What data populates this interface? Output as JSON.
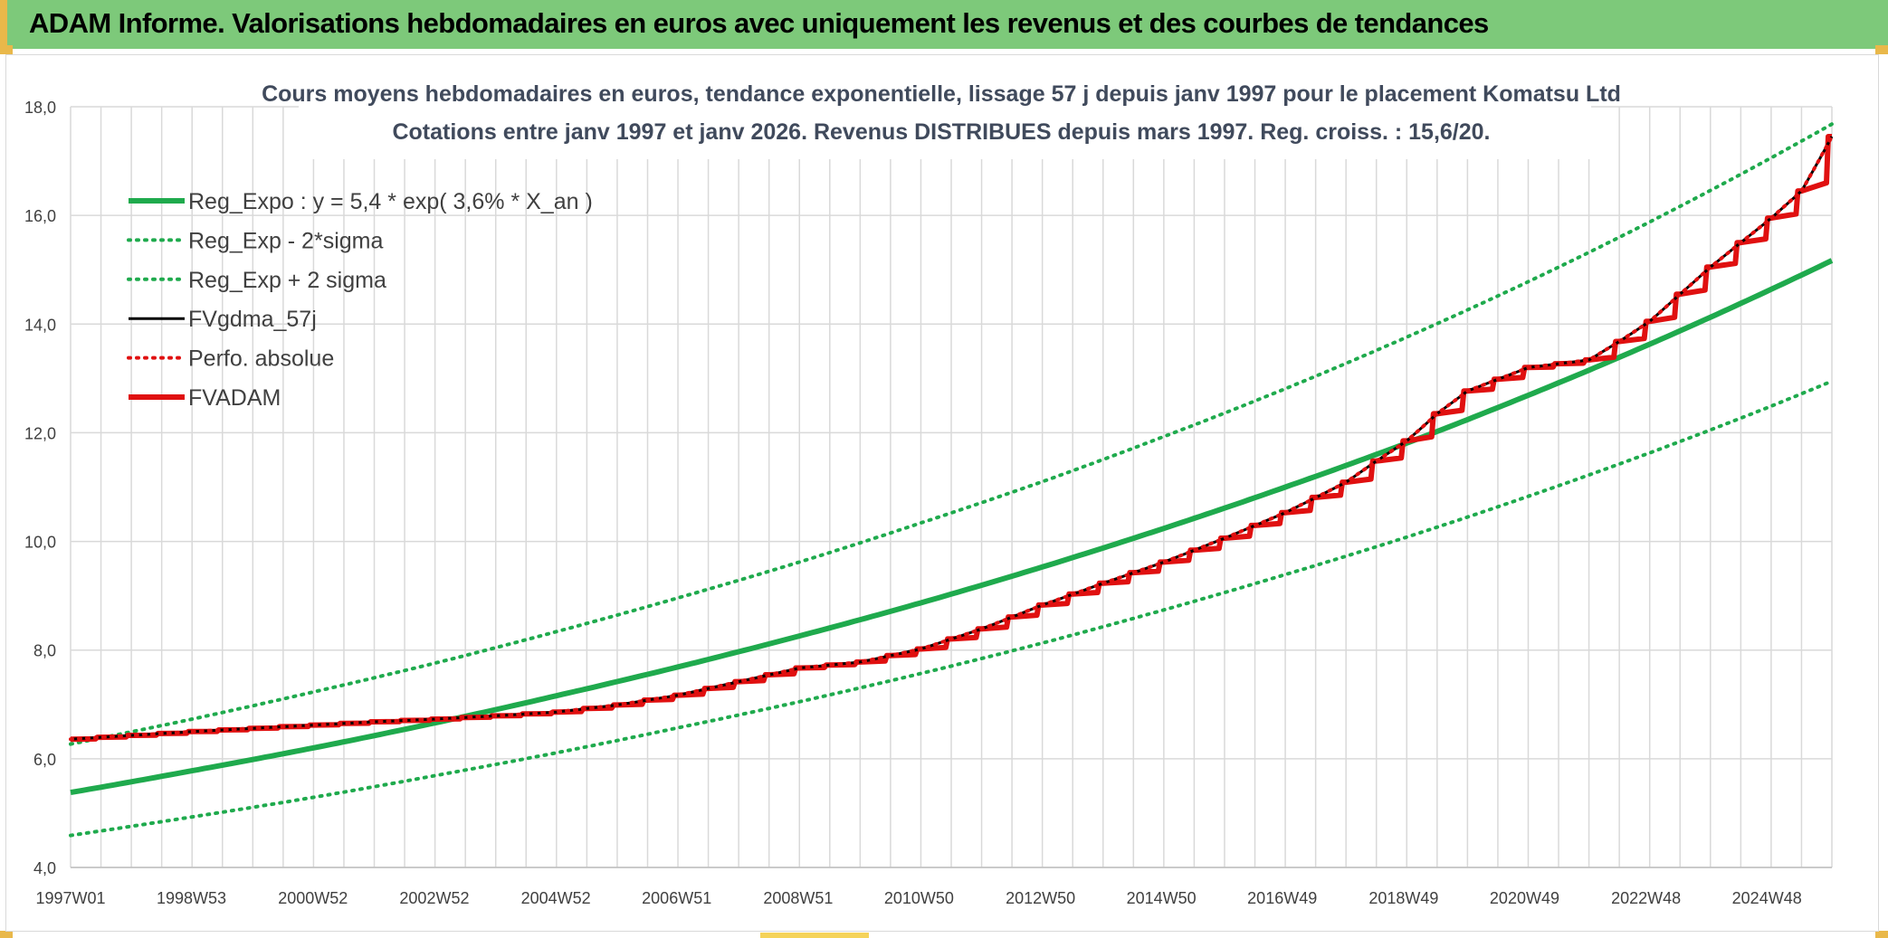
{
  "header": {
    "title": "ADAM Informe. Valorisations hebdomadaires en euros avec uniquement les revenus et des courbes de tendances"
  },
  "colors": {
    "green": "#1faa4d",
    "red": "#e01010",
    "black": "#000000",
    "grid": "#d9d9d9",
    "header_bg": "#7dc97a"
  },
  "chart_data": {
    "type": "line",
    "title": "Cours moyens hebdomadaires en euros, tendance exponentielle, lissage 57 j depuis janv 1997 pour le placement Komatsu Ltd",
    "subtitle": "Cotations entre janv 1997 et janv 2026. Revenus DISTRIBUES depuis mars 1997. Reg. croiss. : 15,6/20.",
    "xlabel": "",
    "ylabel": "",
    "x_range": [
      1997.0,
      2026.0
    ],
    "ylim": [
      4.0,
      18.0
    ],
    "y_ticks": [
      "4,0",
      "6,0",
      "8,0",
      "10,0",
      "12,0",
      "14,0",
      "16,0",
      "18,0"
    ],
    "x_ticks": [
      {
        "label": "1997W01",
        "x": 1997.0
      },
      {
        "label": "1998W53",
        "x": 1998.99
      },
      {
        "label": "2000W52",
        "x": 2000.99
      },
      {
        "label": "2002W52",
        "x": 2002.99
      },
      {
        "label": "2004W52",
        "x": 2004.99
      },
      {
        "label": "2006W51",
        "x": 2006.98
      },
      {
        "label": "2008W51",
        "x": 2008.98
      },
      {
        "label": "2010W50",
        "x": 2010.97
      },
      {
        "label": "2012W50",
        "x": 2012.97
      },
      {
        "label": "2014W50",
        "x": 2014.96
      },
      {
        "label": "2016W49",
        "x": 2016.95
      },
      {
        "label": "2018W49",
        "x": 2018.95
      },
      {
        "label": "2020W49",
        "x": 2020.94
      },
      {
        "label": "2022W48",
        "x": 2022.94
      },
      {
        "label": "2024W48",
        "x": 2024.93
      }
    ],
    "grid": true,
    "legend_position": "top-left",
    "series": [
      {
        "name": "Reg_Expo : y = 5,4 * exp( 3,6% *  X_an )",
        "style": "solid-thick",
        "color": "#1faa4d",
        "x": [
          1997,
          1999,
          2001,
          2003,
          2005,
          2007,
          2009,
          2011,
          2013,
          2015,
          2017,
          2019,
          2021,
          2023,
          2025,
          2026
        ],
        "y": [
          5.38,
          5.78,
          6.2,
          6.66,
          7.16,
          7.69,
          8.26,
          8.87,
          9.53,
          10.24,
          11.0,
          11.81,
          12.69,
          13.63,
          14.64,
          15.17
        ]
      },
      {
        "name": "Reg_Exp - 2*sigma",
        "style": "dotted",
        "color": "#1faa4d",
        "x": [
          1997,
          1999,
          2001,
          2003,
          2005,
          2007,
          2009,
          2011,
          2013,
          2015,
          2017,
          2019,
          2021,
          2023,
          2025,
          2026
        ],
        "y": [
          4.59,
          4.93,
          5.29,
          5.69,
          6.11,
          6.57,
          7.05,
          7.57,
          8.13,
          8.74,
          9.39,
          10.08,
          10.83,
          11.63,
          12.49,
          12.95
        ]
      },
      {
        "name": "Reg_Exp + 2 sigma",
        "style": "dotted",
        "color": "#1faa4d",
        "x": [
          1997,
          1999,
          2001,
          2003,
          2005,
          2007,
          2009,
          2011,
          2013,
          2015,
          2017,
          2019,
          2021,
          2023,
          2025,
          2026
        ],
        "y": [
          6.27,
          6.73,
          7.23,
          7.76,
          8.34,
          8.96,
          9.62,
          10.34,
          11.1,
          11.93,
          12.81,
          13.76,
          14.78,
          15.88,
          17.06,
          17.68
        ]
      },
      {
        "name": "FVgdma_57j",
        "style": "solid",
        "color": "#000000",
        "x": [
          1997.0,
          1998.0,
          1999.0,
          2000.0,
          2001.0,
          2002.0,
          2003.0,
          2004.0,
          2005.0,
          2006.0,
          2007.0,
          2008.0,
          2009.0,
          2010.0,
          2011.0,
          2012.0,
          2013.0,
          2014.0,
          2015.0,
          2016.0,
          2017.0,
          2018.0,
          2018.5,
          2019.0,
          2019.5,
          2020.0,
          2021.0,
          2022.0,
          2022.5,
          2023.0,
          2023.5,
          2024.0,
          2024.5,
          2025.0,
          2025.5,
          2026.0
        ],
        "y": [
          6.36,
          6.43,
          6.5,
          6.56,
          6.62,
          6.68,
          6.73,
          6.79,
          6.86,
          6.99,
          7.17,
          7.42,
          7.67,
          7.78,
          8.02,
          8.39,
          8.83,
          9.23,
          9.62,
          10.06,
          10.53,
          11.09,
          11.48,
          11.85,
          12.35,
          12.77,
          13.2,
          13.34,
          13.68,
          14.05,
          14.55,
          15.05,
          15.5,
          15.95,
          16.45,
          17.45
        ]
      },
      {
        "name": "Perfo. absolue",
        "style": "dotted",
        "color": "#e01010",
        "x": [
          1997.0,
          1998.0,
          1999.0,
          2000.0,
          2001.0,
          2002.0,
          2003.0,
          2004.0,
          2005.0,
          2006.0,
          2007.0,
          2008.0,
          2009.0,
          2010.0,
          2011.0,
          2012.0,
          2013.0,
          2014.0,
          2015.0,
          2016.0,
          2017.0,
          2018.0,
          2018.5,
          2019.0,
          2019.5,
          2020.0,
          2021.0,
          2022.0,
          2022.5,
          2023.0,
          2023.5,
          2024.0,
          2024.5,
          2025.0,
          2025.5,
          2026.0
        ],
        "y": [
          6.36,
          6.43,
          6.5,
          6.56,
          6.62,
          6.68,
          6.73,
          6.79,
          6.86,
          6.99,
          7.17,
          7.42,
          7.67,
          7.78,
          8.02,
          8.39,
          8.83,
          9.23,
          9.62,
          10.06,
          10.53,
          11.09,
          11.48,
          11.85,
          12.35,
          12.77,
          13.2,
          13.34,
          13.68,
          14.05,
          14.55,
          15.05,
          15.5,
          15.95,
          16.45,
          17.45
        ]
      },
      {
        "name": "FVADAM",
        "style": "solid-thick-stepped",
        "color": "#e01010",
        "x": [
          1997.0,
          1998.0,
          1999.0,
          2000.0,
          2001.0,
          2002.0,
          2003.0,
          2004.0,
          2005.0,
          2006.0,
          2007.0,
          2008.0,
          2009.0,
          2010.0,
          2011.0,
          2012.0,
          2013.0,
          2014.0,
          2015.0,
          2016.0,
          2017.0,
          2018.0,
          2018.5,
          2019.0,
          2019.5,
          2020.0,
          2021.0,
          2022.0,
          2022.5,
          2023.0,
          2023.5,
          2024.0,
          2024.5,
          2025.0,
          2025.5,
          2026.0
        ],
        "y": [
          6.36,
          6.43,
          6.5,
          6.56,
          6.62,
          6.68,
          6.73,
          6.79,
          6.86,
          6.99,
          7.17,
          7.42,
          7.67,
          7.78,
          8.02,
          8.39,
          8.83,
          9.23,
          9.62,
          10.06,
          10.53,
          11.09,
          11.48,
          11.85,
          12.35,
          12.77,
          13.2,
          13.34,
          13.68,
          14.05,
          14.55,
          15.05,
          15.5,
          15.95,
          16.45,
          17.45
        ]
      }
    ]
  }
}
